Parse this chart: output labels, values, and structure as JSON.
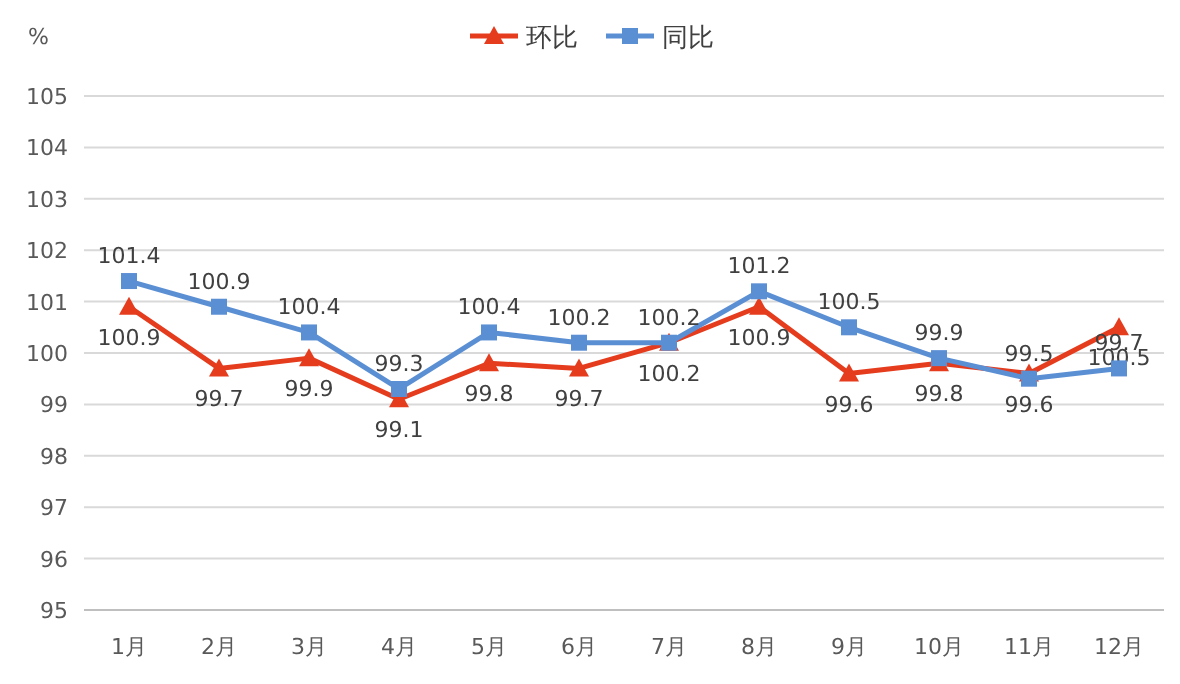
{
  "chart_data": {
    "type": "line",
    "ylabel": "%",
    "categories": [
      "1月",
      "2月",
      "3月",
      "4月",
      "5月",
      "6月",
      "7月",
      "8月",
      "9月",
      "10月",
      "11月",
      "12月"
    ],
    "series": [
      {
        "name": "环比",
        "color": "#e53c1e",
        "marker": "triangle",
        "values": [
          100.9,
          99.7,
          99.9,
          99.1,
          99.8,
          99.7,
          100.2,
          100.9,
          99.6,
          99.8,
          99.6,
          100.5
        ]
      },
      {
        "name": "同比",
        "color": "#5b8fd4",
        "marker": "square",
        "values": [
          101.4,
          100.9,
          100.4,
          99.3,
          100.4,
          100.2,
          100.2,
          101.2,
          100.5,
          99.9,
          99.5,
          99.7
        ]
      }
    ],
    "ylim": [
      95,
      105
    ],
    "yticks": [
      95,
      96,
      97,
      98,
      99,
      100,
      101,
      102,
      103,
      104,
      105
    ],
    "grid": "y",
    "legend": "top",
    "data_labels": true
  }
}
